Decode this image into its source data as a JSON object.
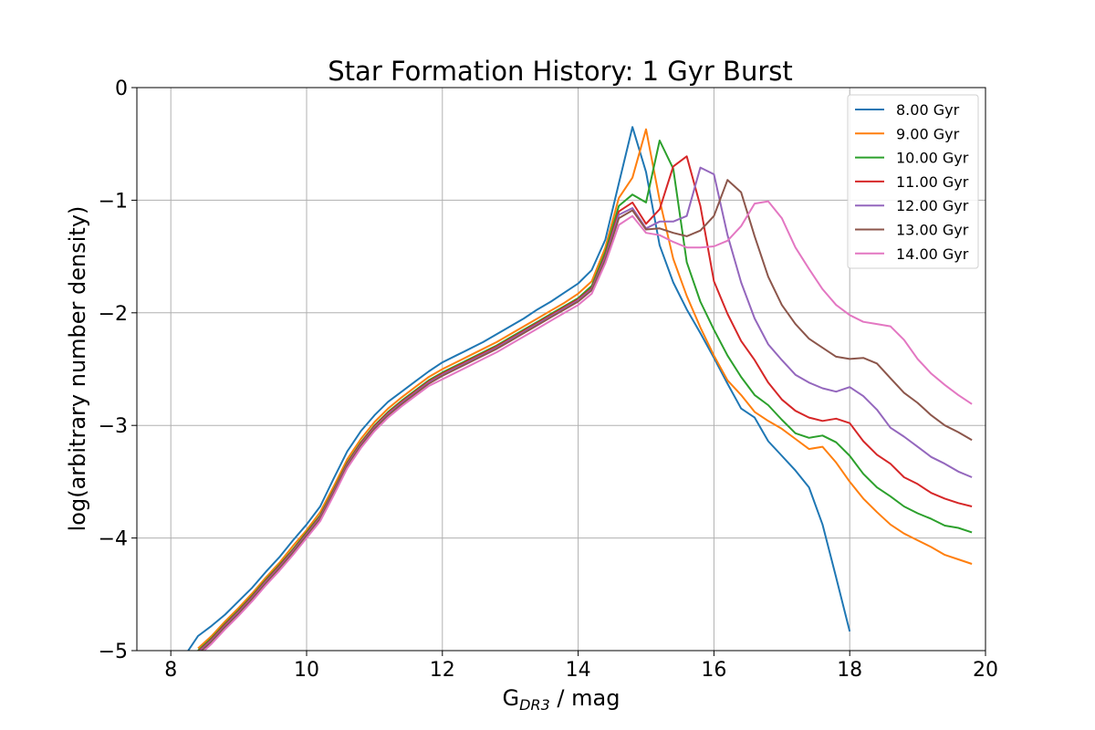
{
  "chart_data": {
    "type": "line",
    "title": "Star Formation History: 1 Gyr Burst",
    "xlabel": {
      "main": "G",
      "sub": "DR3",
      "tail": " / mag"
    },
    "ylabel": "log(arbitrary number density)",
    "xlim": [
      7.5,
      20
    ],
    "ylim": [
      -5,
      0
    ],
    "xticks": [
      8,
      10,
      12,
      14,
      16,
      18,
      20
    ],
    "yticks": [
      0,
      -1,
      -2,
      -3,
      -4,
      -5
    ],
    "xtick_labels": [
      "8",
      "10",
      "12",
      "14",
      "16",
      "18",
      "20"
    ],
    "ytick_labels": [
      "0",
      "−1",
      "−2",
      "−3",
      "−4",
      "−5"
    ],
    "grid": true,
    "legend_position": "top-right",
    "series": [
      {
        "name": "8.00 Gyr",
        "color": "#1f77b4",
        "x": [
          8.2,
          8.4,
          8.6,
          8.8,
          9.0,
          9.2,
          9.4,
          9.6,
          9.8,
          10.0,
          10.2,
          10.4,
          10.6,
          10.8,
          11.0,
          11.2,
          11.4,
          11.6,
          11.8,
          12.0,
          12.2,
          12.4,
          12.6,
          12.8,
          13.0,
          13.2,
          13.4,
          13.6,
          13.8,
          14.0,
          14.2,
          14.4,
          14.6,
          14.8,
          15.0,
          15.2,
          15.4,
          15.6,
          15.8,
          16.0,
          16.2,
          16.4,
          16.6,
          16.8,
          17.0,
          17.2,
          17.4,
          17.6,
          17.8,
          18.0
        ],
        "y": [
          -5.05,
          -4.87,
          -4.78,
          -4.68,
          -4.56,
          -4.44,
          -4.3,
          -4.17,
          -4.02,
          -3.88,
          -3.72,
          -3.47,
          -3.23,
          -3.05,
          -2.91,
          -2.79,
          -2.7,
          -2.61,
          -2.52,
          -2.44,
          -2.38,
          -2.32,
          -2.26,
          -2.19,
          -2.12,
          -2.05,
          -1.97,
          -1.9,
          -1.82,
          -1.74,
          -1.62,
          -1.35,
          -0.85,
          -0.35,
          -0.75,
          -1.4,
          -1.73,
          -1.97,
          -2.18,
          -2.4,
          -2.63,
          -2.85,
          -2.93,
          -3.14,
          -3.27,
          -3.4,
          -3.55,
          -3.88,
          -4.35,
          -4.83
        ]
      },
      {
        "name": "9.00 Gyr",
        "color": "#ff7f0e",
        "x": [
          8.4,
          8.6,
          8.8,
          9.0,
          9.2,
          9.4,
          9.6,
          9.8,
          10.0,
          10.2,
          10.4,
          10.6,
          10.8,
          11.0,
          11.2,
          11.4,
          11.6,
          11.8,
          12.0,
          12.2,
          12.4,
          12.6,
          12.8,
          13.0,
          13.2,
          13.4,
          13.6,
          13.8,
          14.0,
          14.2,
          14.4,
          14.6,
          14.8,
          15.0,
          15.2,
          15.4,
          15.6,
          15.8,
          16.0,
          16.2,
          16.4,
          16.6,
          16.8,
          17.0,
          17.2,
          17.4,
          17.6,
          17.8,
          18.0,
          18.2,
          18.4,
          18.6,
          18.8,
          19.0,
          19.2,
          19.4,
          19.6,
          19.8
        ],
        "y": [
          -4.98,
          -4.87,
          -4.74,
          -4.62,
          -4.49,
          -4.35,
          -4.22,
          -4.07,
          -3.93,
          -3.77,
          -3.54,
          -3.3,
          -3.12,
          -2.97,
          -2.85,
          -2.75,
          -2.66,
          -2.57,
          -2.5,
          -2.44,
          -2.38,
          -2.32,
          -2.26,
          -2.19,
          -2.12,
          -2.05,
          -1.98,
          -1.91,
          -1.83,
          -1.72,
          -1.42,
          -0.98,
          -0.8,
          -0.37,
          -1.0,
          -1.52,
          -1.85,
          -2.13,
          -2.38,
          -2.6,
          -2.73,
          -2.88,
          -2.96,
          -3.03,
          -3.12,
          -3.21,
          -3.19,
          -3.33,
          -3.5,
          -3.65,
          -3.77,
          -3.88,
          -3.96,
          -4.02,
          -4.08,
          -4.15,
          -4.19,
          -4.23
        ]
      },
      {
        "name": "10.00 Gyr",
        "color": "#2ca02c",
        "x": [
          8.4,
          8.6,
          8.8,
          9.0,
          9.2,
          9.4,
          9.6,
          9.8,
          10.0,
          10.2,
          10.4,
          10.6,
          10.8,
          11.0,
          11.2,
          11.4,
          11.6,
          11.8,
          12.0,
          12.2,
          12.4,
          12.6,
          12.8,
          13.0,
          13.2,
          13.4,
          13.6,
          13.8,
          14.0,
          14.2,
          14.4,
          14.6,
          14.8,
          15.0,
          15.2,
          15.4,
          15.6,
          15.8,
          16.0,
          16.2,
          16.4,
          16.6,
          16.8,
          17.0,
          17.2,
          17.4,
          17.6,
          17.8,
          18.0,
          18.2,
          18.4,
          18.6,
          18.8,
          19.0,
          19.2,
          19.4,
          19.6,
          19.8
        ],
        "y": [
          -5.0,
          -4.89,
          -4.76,
          -4.64,
          -4.51,
          -4.37,
          -4.24,
          -4.1,
          -3.95,
          -3.8,
          -3.57,
          -3.33,
          -3.15,
          -3.0,
          -2.88,
          -2.78,
          -2.69,
          -2.6,
          -2.53,
          -2.47,
          -2.41,
          -2.35,
          -2.29,
          -2.22,
          -2.15,
          -2.08,
          -2.01,
          -1.94,
          -1.87,
          -1.76,
          -1.46,
          -1.05,
          -0.95,
          -1.02,
          -0.47,
          -0.72,
          -1.55,
          -1.9,
          -2.15,
          -2.38,
          -2.57,
          -2.73,
          -2.82,
          -2.95,
          -3.07,
          -3.11,
          -3.09,
          -3.15,
          -3.27,
          -3.43,
          -3.55,
          -3.63,
          -3.72,
          -3.78,
          -3.83,
          -3.89,
          -3.91,
          -3.95
        ]
      },
      {
        "name": "11.00 Gyr",
        "color": "#d62728",
        "x": [
          8.4,
          8.6,
          8.8,
          9.0,
          9.2,
          9.4,
          9.6,
          9.8,
          10.0,
          10.2,
          10.4,
          10.6,
          10.8,
          11.0,
          11.2,
          11.4,
          11.6,
          11.8,
          12.0,
          12.2,
          12.4,
          12.6,
          12.8,
          13.0,
          13.2,
          13.4,
          13.6,
          13.8,
          14.0,
          14.2,
          14.4,
          14.6,
          14.8,
          15.0,
          15.2,
          15.4,
          15.6,
          15.8,
          16.0,
          16.2,
          16.4,
          16.6,
          16.8,
          17.0,
          17.2,
          17.4,
          17.6,
          17.8,
          18.0,
          18.2,
          18.4,
          18.6,
          18.8,
          19.0,
          19.2,
          19.4,
          19.6,
          19.8
        ],
        "y": [
          -5.01,
          -4.9,
          -4.77,
          -4.65,
          -4.52,
          -4.38,
          -4.25,
          -4.11,
          -3.96,
          -3.81,
          -3.58,
          -3.34,
          -3.16,
          -3.01,
          -2.89,
          -2.79,
          -2.7,
          -2.61,
          -2.54,
          -2.48,
          -2.42,
          -2.36,
          -2.3,
          -2.23,
          -2.16,
          -2.09,
          -2.02,
          -1.95,
          -1.88,
          -1.78,
          -1.49,
          -1.1,
          -1.02,
          -1.21,
          -1.08,
          -0.7,
          -0.61,
          -1.05,
          -1.72,
          -2.01,
          -2.25,
          -2.42,
          -2.62,
          -2.77,
          -2.87,
          -2.93,
          -2.96,
          -2.94,
          -2.98,
          -3.14,
          -3.26,
          -3.34,
          -3.46,
          -3.52,
          -3.6,
          -3.65,
          -3.69,
          -3.72
        ]
      },
      {
        "name": "12.00 Gyr",
        "color": "#9467bd",
        "x": [
          8.4,
          8.6,
          8.8,
          9.0,
          9.2,
          9.4,
          9.6,
          9.8,
          10.0,
          10.2,
          10.4,
          10.6,
          10.8,
          11.0,
          11.2,
          11.4,
          11.6,
          11.8,
          12.0,
          12.2,
          12.4,
          12.6,
          12.8,
          13.0,
          13.2,
          13.4,
          13.6,
          13.8,
          14.0,
          14.2,
          14.4,
          14.6,
          14.8,
          15.0,
          15.2,
          15.4,
          15.6,
          15.8,
          16.0,
          16.2,
          16.4,
          16.6,
          16.8,
          17.0,
          17.2,
          17.4,
          17.6,
          17.8,
          18.0,
          18.2,
          18.4,
          18.6,
          18.8,
          19.0,
          19.2,
          19.4,
          19.6,
          19.8
        ],
        "y": [
          -5.02,
          -4.91,
          -4.78,
          -4.66,
          -4.53,
          -4.39,
          -4.26,
          -4.12,
          -3.97,
          -3.82,
          -3.59,
          -3.35,
          -3.17,
          -3.02,
          -2.9,
          -2.8,
          -2.71,
          -2.62,
          -2.55,
          -2.49,
          -2.43,
          -2.37,
          -2.31,
          -2.24,
          -2.17,
          -2.1,
          -2.03,
          -1.96,
          -1.89,
          -1.79,
          -1.51,
          -1.13,
          -1.07,
          -1.25,
          -1.19,
          -1.19,
          -1.14,
          -0.71,
          -0.77,
          -1.31,
          -1.73,
          -2.05,
          -2.28,
          -2.42,
          -2.55,
          -2.62,
          -2.67,
          -2.7,
          -2.66,
          -2.74,
          -2.86,
          -3.02,
          -3.1,
          -3.19,
          -3.28,
          -3.34,
          -3.41,
          -3.46
        ]
      },
      {
        "name": "13.00 Gyr",
        "color": "#8c564b",
        "x": [
          8.4,
          8.6,
          8.8,
          9.0,
          9.2,
          9.4,
          9.6,
          9.8,
          10.0,
          10.2,
          10.4,
          10.6,
          10.8,
          11.0,
          11.2,
          11.4,
          11.6,
          11.8,
          12.0,
          12.2,
          12.4,
          12.6,
          12.8,
          13.0,
          13.2,
          13.4,
          13.6,
          13.8,
          14.0,
          14.2,
          14.4,
          14.6,
          14.8,
          15.0,
          15.2,
          15.4,
          15.6,
          15.8,
          16.0,
          16.2,
          16.4,
          16.6,
          16.8,
          17.0,
          17.2,
          17.4,
          17.6,
          17.8,
          18.0,
          18.2,
          18.4,
          18.6,
          18.8,
          19.0,
          19.2,
          19.4,
          19.6,
          19.8
        ],
        "y": [
          -5.03,
          -4.92,
          -4.79,
          -4.67,
          -4.54,
          -4.4,
          -4.27,
          -4.13,
          -3.98,
          -3.83,
          -3.6,
          -3.36,
          -3.18,
          -3.03,
          -2.91,
          -2.81,
          -2.72,
          -2.63,
          -2.56,
          -2.5,
          -2.44,
          -2.38,
          -2.32,
          -2.25,
          -2.18,
          -2.11,
          -2.04,
          -1.97,
          -1.9,
          -1.8,
          -1.53,
          -1.16,
          -1.09,
          -1.26,
          -1.25,
          -1.29,
          -1.32,
          -1.27,
          -1.14,
          -0.82,
          -0.93,
          -1.32,
          -1.68,
          -1.93,
          -2.1,
          -2.23,
          -2.31,
          -2.39,
          -2.41,
          -2.4,
          -2.45,
          -2.58,
          -2.71,
          -2.8,
          -2.91,
          -3.0,
          -3.06,
          -3.13
        ]
      },
      {
        "name": "14.00 Gyr",
        "color": "#e377c2",
        "x": [
          8.4,
          8.6,
          8.8,
          9.0,
          9.2,
          9.4,
          9.6,
          9.8,
          10.0,
          10.2,
          10.4,
          10.6,
          10.8,
          11.0,
          11.2,
          11.4,
          11.6,
          11.8,
          12.0,
          12.2,
          12.4,
          12.6,
          12.8,
          13.0,
          13.2,
          13.4,
          13.6,
          13.8,
          14.0,
          14.2,
          14.4,
          14.6,
          14.8,
          15.0,
          15.2,
          15.4,
          15.6,
          15.8,
          16.0,
          16.2,
          16.4,
          16.6,
          16.8,
          17.0,
          17.2,
          17.4,
          17.6,
          17.8,
          18.0,
          18.2,
          18.4,
          18.6,
          18.8,
          19.0,
          19.2,
          19.4,
          19.6,
          19.8
        ],
        "y": [
          -5.05,
          -4.94,
          -4.81,
          -4.69,
          -4.56,
          -4.42,
          -4.29,
          -4.15,
          -4.0,
          -3.85,
          -3.62,
          -3.38,
          -3.2,
          -3.05,
          -2.93,
          -2.83,
          -2.74,
          -2.65,
          -2.59,
          -2.53,
          -2.47,
          -2.41,
          -2.35,
          -2.28,
          -2.21,
          -2.14,
          -2.07,
          -2.0,
          -1.93,
          -1.83,
          -1.56,
          -1.22,
          -1.14,
          -1.29,
          -1.31,
          -1.37,
          -1.42,
          -1.42,
          -1.41,
          -1.36,
          -1.23,
          -1.03,
          -1.01,
          -1.16,
          -1.42,
          -1.61,
          -1.79,
          -1.93,
          -2.02,
          -2.08,
          -2.1,
          -2.12,
          -2.24,
          -2.41,
          -2.54,
          -2.64,
          -2.73,
          -2.81
        ]
      }
    ]
  }
}
